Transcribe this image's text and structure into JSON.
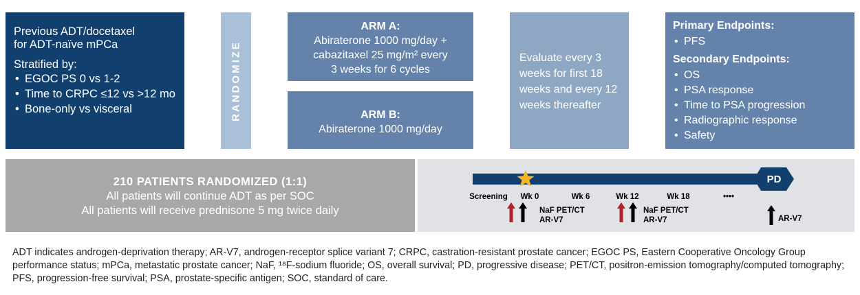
{
  "left_box": {
    "line1": "Previous ADT/docetaxel",
    "line2": "for ADT-naïve mPCa",
    "stratified_label": "Stratified by:",
    "strata": [
      "EGOC PS 0 vs 1-2",
      "Time to CRPC ≤12 vs >12 mo",
      "Bone-only vs visceral"
    ]
  },
  "randomize_label": "RANDOMIZE",
  "arm_a": {
    "title": "ARM A:",
    "lines": [
      "Abiraterone 1000 mg/day +",
      "cabazitaxel 25 mg/m² every",
      "3 weeks for 6 cycles"
    ]
  },
  "arm_b": {
    "title": "ARM B:",
    "line": "Abiraterone 1000 mg/day"
  },
  "evaluate": {
    "lines": [
      "Evaluate every 3",
      "weeks for first 18",
      "weeks and every 12",
      "weeks thereafter"
    ]
  },
  "endpoints": {
    "primary_title": "Primary Endpoints:",
    "primary": [
      "PFS"
    ],
    "secondary_title": "Secondary Endpoints:",
    "secondary": [
      "OS",
      "PSA response",
      "Time to PSA progression",
      "Radiographic response",
      "Safety"
    ]
  },
  "patients": {
    "title": "210 PATIENTS RANDOMIZED (1:1)",
    "line1": "All patients will continue ADT as per SOC",
    "line2": "All patients will receive prednisone 5 mg twice daily"
  },
  "timeline": {
    "labels": [
      "Screening",
      "Wk 0",
      "Wk 6",
      "Wk 12",
      "Wk 18",
      "••••"
    ],
    "pd_label": "PD",
    "note_wk0": [
      "NaF PET/CT",
      "AR-V7"
    ],
    "note_wk12": [
      "NaF PET/CT",
      "AR-V7"
    ],
    "note_pd": "AR-V7",
    "colors": {
      "bar": "#12406e",
      "star": "#f5b323",
      "red_arrow": "#b22028",
      "black_arrow": "#000000"
    }
  },
  "footnote": "ADT indicates androgen-deprivation therapy; AR-V7, androgen-receptor splice variant 7; CRPC, castration-resistant prostate cancer; EGOC PS, Eastern Cooperative Oncology Group performance status; mPCa, metastatic prostate cancer; NaF, ¹⁸F-sodium fluoride; OS, overall survival; PD, progressive disease; PET/CT, positron-emission tomography/computed tomography; PFS, progression-free survival; PSA, prostate-specific antigen; SOC, standard of care.",
  "colors": {
    "dark": "#12406e",
    "mid": "#6582aa",
    "light": "#8ea8c3",
    "pale": "#a9c0d8",
    "grey": "#a7a8aa",
    "timeline_bg": "#e1e2e5"
  }
}
